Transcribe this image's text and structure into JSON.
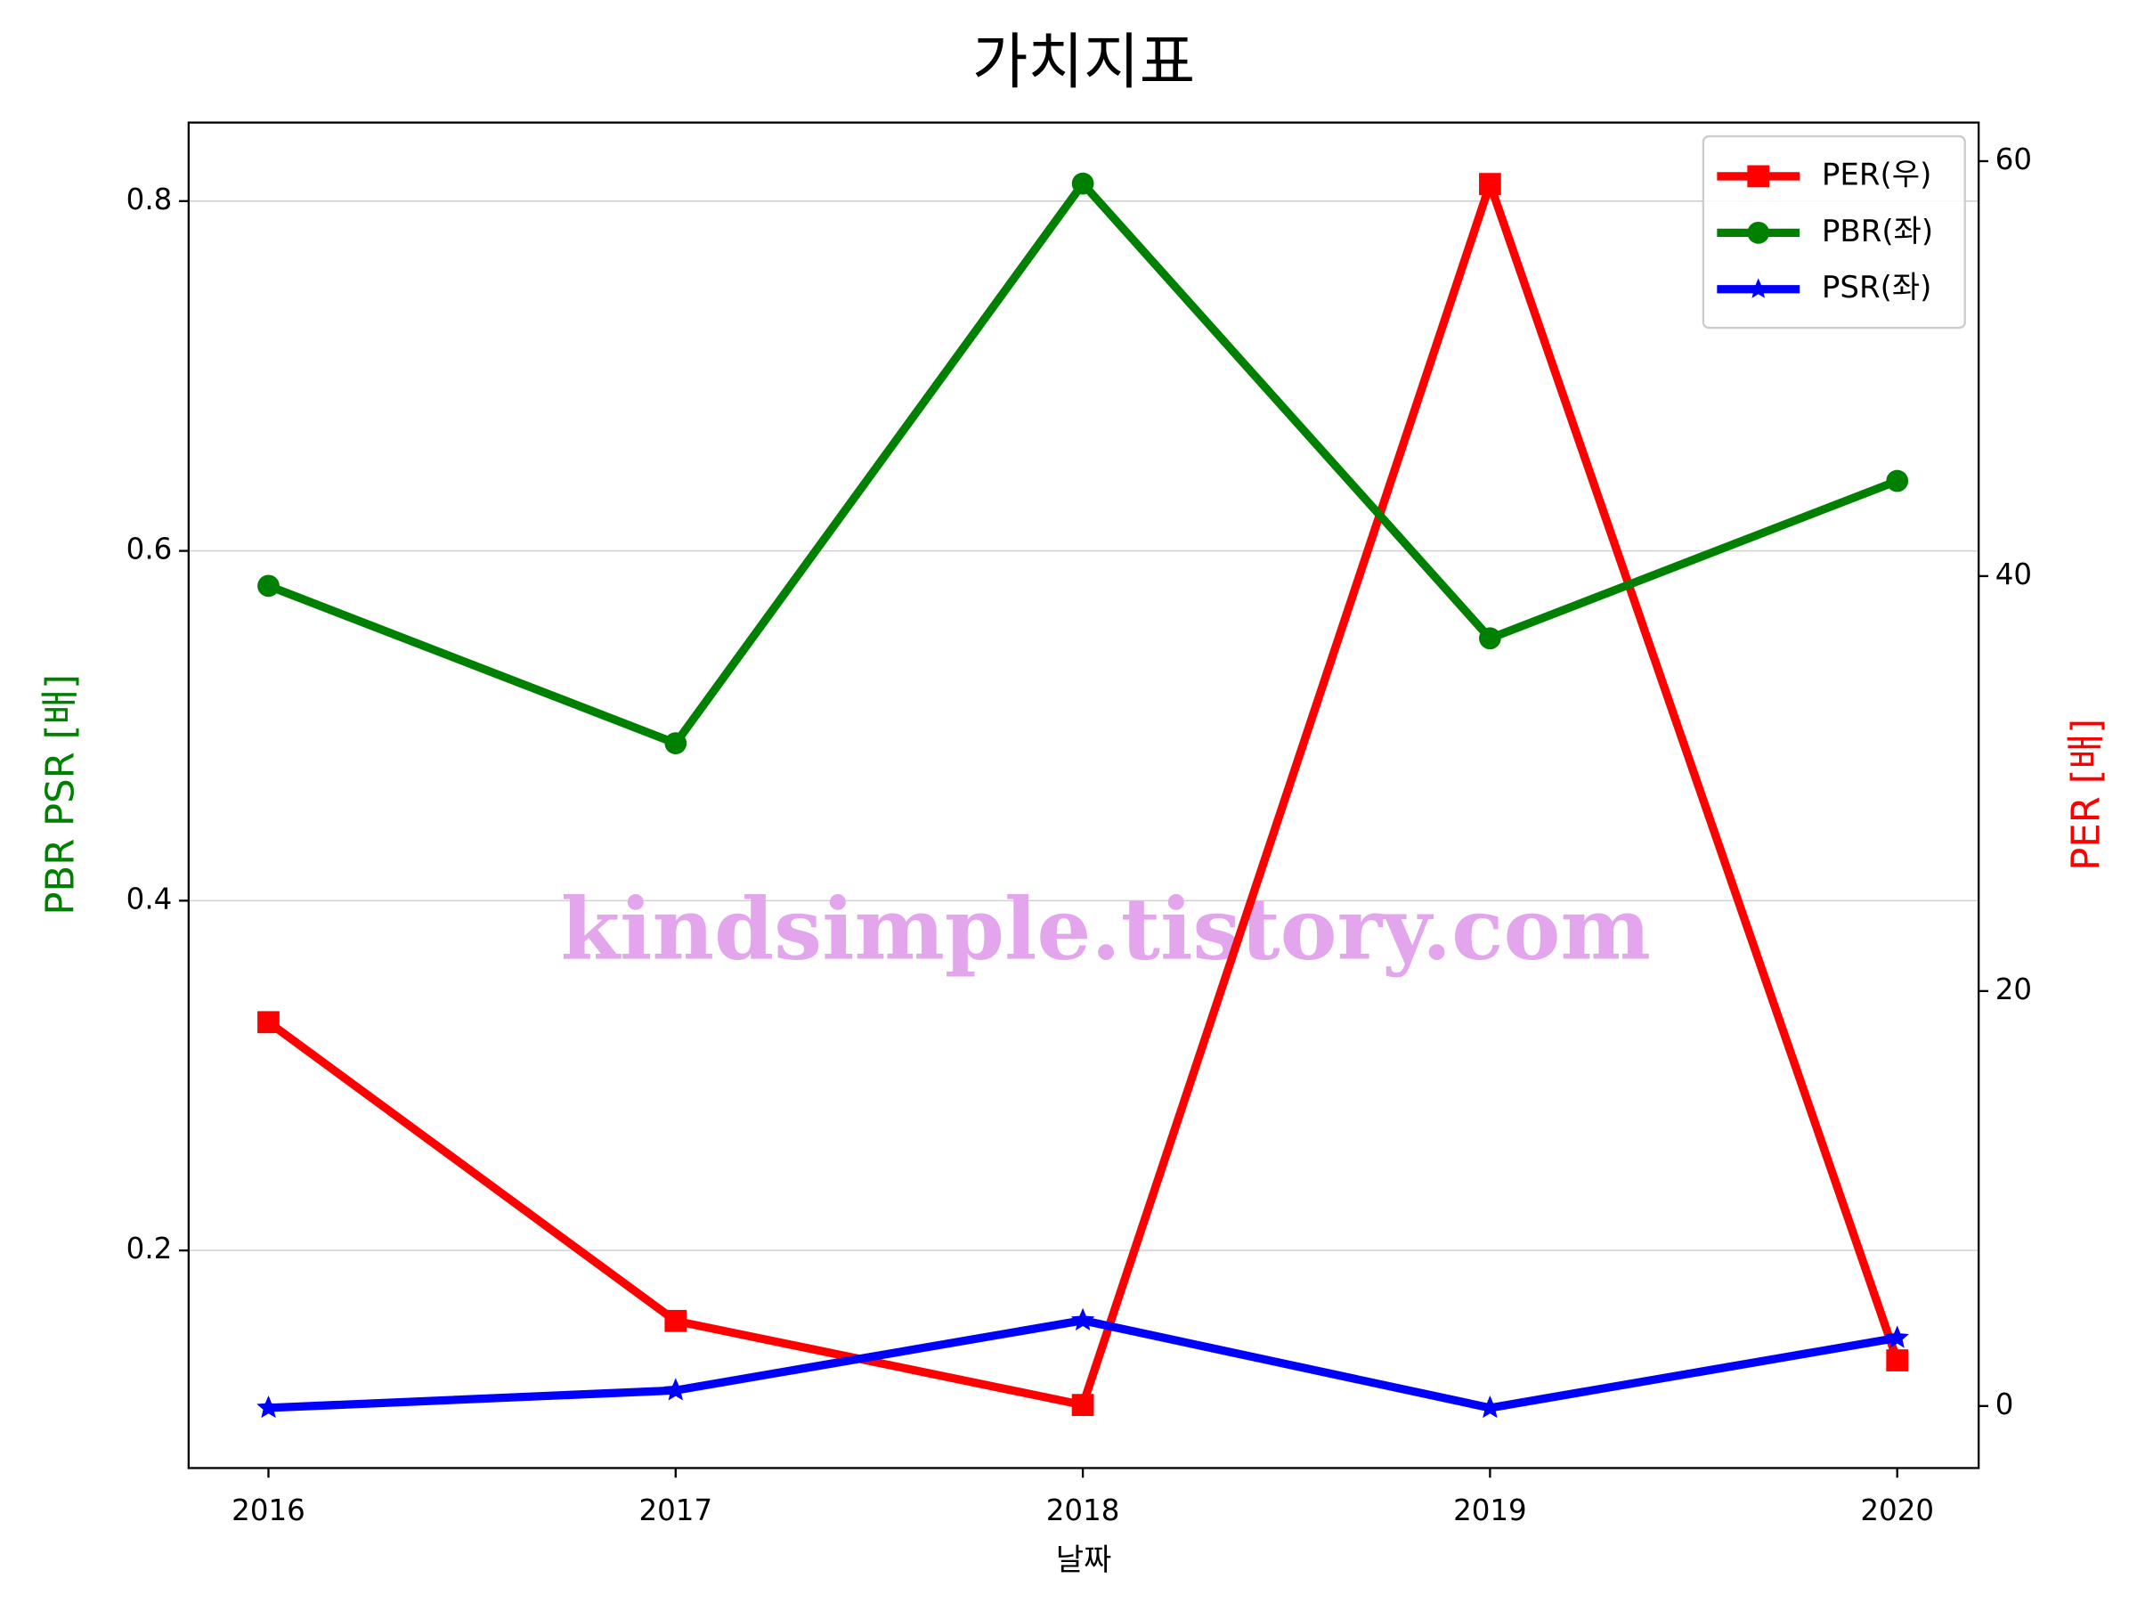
{
  "chart_data": {
    "type": "line",
    "title": "가치지표",
    "xlabel": "날짜",
    "ylabel": "PBR PSR [배]",
    "y2label": "PER [배]",
    "watermark": "kindsimple.tistory.com",
    "x": [
      2016,
      2017,
      2018,
      2019,
      2020
    ],
    "xlim": [
      2015.804,
      2020.2
    ],
    "xticks": [
      2016,
      2017,
      2018,
      2019,
      2020
    ],
    "ylim": [
      0.0756,
      0.8449
    ],
    "yticks": [
      0.2,
      0.4,
      0.6,
      0.8
    ],
    "y2lim": [
      -2.99,
      61.86
    ],
    "y2ticks": [
      0,
      20,
      40,
      60
    ],
    "grid": "y",
    "legend": "upper right",
    "series": [
      {
        "name": "PER(우)",
        "color": "#ff0000",
        "marker": "square",
        "axis": "y2",
        "values": [
          18.5,
          4.1,
          0.05,
          58.9,
          2.2
        ]
      },
      {
        "name": "PBR(좌)",
        "color": "#008000",
        "marker": "circle",
        "values": [
          0.58,
          0.49,
          0.81,
          0.55,
          0.64
        ]
      },
      {
        "name": "PSR(좌)",
        "color": "#0000ff",
        "marker": "star",
        "values": [
          0.11,
          0.12,
          0.16,
          0.11,
          0.15
        ]
      }
    ]
  }
}
